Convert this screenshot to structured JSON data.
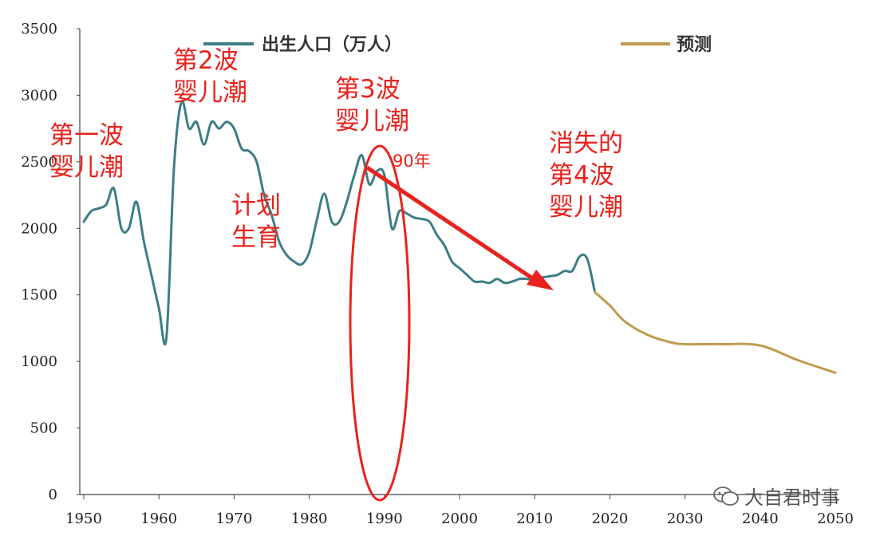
{
  "chart_data": {
    "type": "line",
    "xlim": [
      1950,
      2050
    ],
    "ylim": [
      0,
      3500
    ],
    "x_ticks": [
      "1950",
      "1960",
      "1970",
      "1980",
      "1990",
      "2000",
      "2010",
      "2020",
      "2030",
      "2040",
      "2050"
    ],
    "y_ticks": [
      "0",
      "500",
      "1000",
      "1500",
      "2000",
      "2500",
      "3000",
      "3500"
    ],
    "series": [
      {
        "name": "出生人口（万人）",
        "color": "#3e7d86",
        "x": [
          1950,
          1951,
          1952,
          1953,
          1954,
          1955,
          1956,
          1957,
          1958,
          1959,
          1960,
          1961,
          1962,
          1963,
          1964,
          1965,
          1966,
          1967,
          1968,
          1969,
          1970,
          1971,
          1972,
          1973,
          1974,
          1975,
          1976,
          1977,
          1978,
          1979,
          1980,
          1981,
          1982,
          1983,
          1984,
          1985,
          1986,
          1987,
          1988,
          1989,
          1990,
          1991,
          1992,
          1993,
          1994,
          1995,
          1996,
          1997,
          1998,
          1999,
          2000,
          2001,
          2002,
          2003,
          2004,
          2005,
          2006,
          2007,
          2008,
          2009,
          2010,
          2011,
          2012,
          2013,
          2014,
          2015,
          2016,
          2017,
          2018
        ],
        "y": [
          2050,
          2130,
          2150,
          2180,
          2300,
          2000,
          2000,
          2200,
          1900,
          1650,
          1400,
          1180,
          2450,
          2950,
          2750,
          2800,
          2630,
          2800,
          2750,
          2800,
          2750,
          2600,
          2580,
          2500,
          2250,
          2100,
          1900,
          1800,
          1750,
          1730,
          1820,
          2060,
          2260,
          2050,
          2050,
          2200,
          2400,
          2550,
          2330,
          2430,
          2400,
          2000,
          2130,
          2110,
          2080,
          2070,
          2050,
          1950,
          1870,
          1750,
          1700,
          1650,
          1600,
          1600,
          1590,
          1620,
          1590,
          1600,
          1620,
          1620,
          1610,
          1630,
          1640,
          1650,
          1680,
          1680,
          1790,
          1770,
          1520
        ]
      },
      {
        "name": "预测",
        "color": "#c09a4f",
        "x": [
          2018,
          2020,
          2022,
          2025,
          2028,
          2030,
          2035,
          2040,
          2045,
          2050
        ],
        "y": [
          1520,
          1420,
          1300,
          1200,
          1145,
          1130,
          1130,
          1120,
          1010,
          915
        ]
      }
    ]
  },
  "annotations": {
    "wave1": "第一波\n婴儿潮",
    "wave2": "第2波\n婴儿潮",
    "plan": "计划\n生育",
    "wave3": "第3波\n婴儿潮",
    "nineties": "90年",
    "lost_wave": "消失的\n第4波\n婴儿潮"
  },
  "watermark": "大自君时事",
  "colors": {
    "births": "#3e7d86",
    "forecast": "#c09a4f",
    "annotation_red": "#e8231e"
  }
}
